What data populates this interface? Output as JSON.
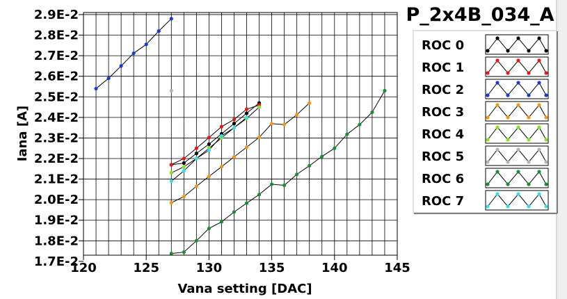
{
  "chart_data": {
    "type": "line",
    "title": "P_2x4B_034_A",
    "xlabel": "Vana setting [DAC]",
    "ylabel": "Iana [A]",
    "xlim": [
      120,
      145
    ],
    "ylim": [
      0.0173,
      0.0291
    ],
    "x_ticks": [
      120,
      125,
      130,
      135,
      140,
      145
    ],
    "x_tick_labels": [
      "120",
      "125",
      "130",
      "135",
      "140",
      "145"
    ],
    "y_ticks": [
      0.017,
      0.018,
      0.019,
      0.02,
      0.021,
      0.022,
      0.023,
      0.024,
      0.025,
      0.026,
      0.027,
      0.028,
      0.029
    ],
    "y_tick_labels": [
      "1.7E-2",
      "1.8E-2",
      "1.9E-2",
      "2.0E-2",
      "2.1E-2",
      "2.2E-2",
      "2.3E-2",
      "2.4E-2",
      "2.5E-2",
      "2.6E-2",
      "2.7E-2",
      "2.8E-2",
      "2.9E-2"
    ],
    "grid": true,
    "legend_position": "right",
    "series": [
      {
        "name": "ROC 0",
        "color": "#000000",
        "x": [
          127,
          128,
          129,
          130,
          131,
          132,
          133,
          134
        ],
        "y": [
          0.0217,
          0.02178,
          0.02225,
          0.0227,
          0.0232,
          0.0237,
          0.0242,
          0.0247
        ]
      },
      {
        "name": "ROC 1",
        "color": "#e31a1c",
        "x": [
          127,
          128,
          129,
          130,
          131,
          132,
          133,
          134
        ],
        "y": [
          0.0217,
          0.022,
          0.0225,
          0.02302,
          0.02355,
          0.0239,
          0.0244,
          0.0246
        ]
      },
      {
        "name": "ROC 2",
        "color": "#1a3cc8",
        "x": [
          121,
          122,
          123,
          124,
          125,
          126,
          127
        ],
        "y": [
          0.0254,
          0.0259,
          0.0265,
          0.02712,
          0.02755,
          0.0282,
          0.0288
        ]
      },
      {
        "name": "ROC 3",
        "color": "#f0961e",
        "x": [
          127,
          128,
          129,
          130,
          131,
          132,
          133,
          134,
          135,
          136,
          137,
          138
        ],
        "y": [
          0.01985,
          0.02015,
          0.02065,
          0.02113,
          0.0216,
          0.02208,
          0.02255,
          0.02303,
          0.0237,
          0.02365,
          0.02413,
          0.0247
        ]
      },
      {
        "name": "ROC 4",
        "color": "#88e030",
        "x": [
          127,
          128,
          129,
          130,
          131,
          132,
          133,
          134
        ],
        "y": [
          0.0213,
          0.0216,
          0.022,
          0.0225,
          0.023,
          0.0235,
          0.02395,
          0.0245
        ]
      },
      {
        "name": "ROC 5",
        "color": "#b4b4b4",
        "x": [
          127
        ],
        "y": [
          0.0253
        ]
      },
      {
        "name": "ROC 6",
        "color": "#1e8c32",
        "x": [
          127,
          128,
          129,
          130,
          131,
          132,
          133,
          134,
          135,
          136,
          137,
          138,
          139,
          140,
          141,
          142,
          143,
          144
        ],
        "y": [
          0.01738,
          0.01745,
          0.018,
          0.0186,
          0.01892,
          0.0194,
          0.01983,
          0.02025,
          0.02075,
          0.0207,
          0.02123,
          0.02165,
          0.0221,
          0.0225,
          0.02318,
          0.02365,
          0.02425,
          0.0253
        ]
      },
      {
        "name": "ROC 7",
        "color": "#3cdce6",
        "x": [
          127,
          128,
          129,
          130,
          131,
          132,
          133
        ],
        "y": [
          0.0209,
          0.0214,
          0.022,
          0.0224,
          0.0231,
          0.0235,
          0.024
        ]
      }
    ]
  }
}
